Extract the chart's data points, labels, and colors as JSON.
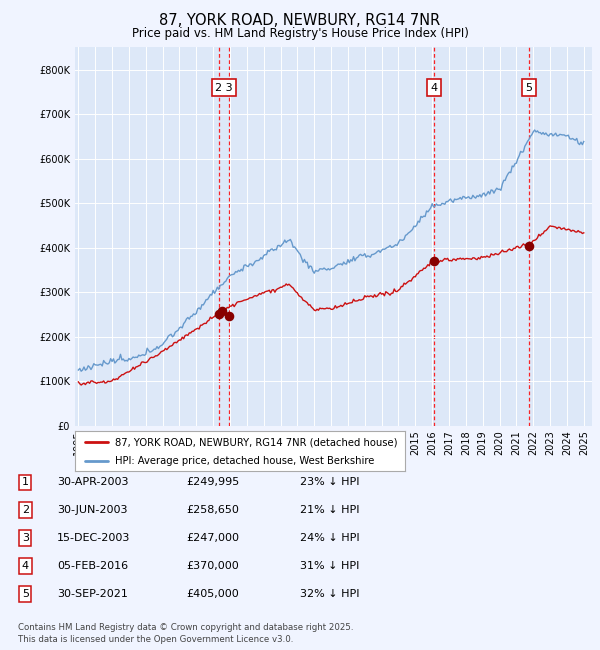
{
  "title": "87, YORK ROAD, NEWBURY, RG14 7NR",
  "subtitle": "Price paid vs. HM Land Registry's House Price Index (HPI)",
  "background_color": "#f0f4ff",
  "plot_bg_color": "#dde8f8",
  "legend_entries": [
    "87, YORK ROAD, NEWBURY, RG14 7NR (detached house)",
    "HPI: Average price, detached house, West Berkshire"
  ],
  "transactions": [
    {
      "num": 1,
      "date": "30-APR-2003",
      "price": 249995,
      "pct": "23%",
      "year": 2003.33
    },
    {
      "num": 2,
      "date": "30-JUN-2003",
      "price": 258650,
      "pct": "21%",
      "year": 2003.5
    },
    {
      "num": 3,
      "date": "15-DEC-2003",
      "price": 247000,
      "pct": "24%",
      "year": 2003.96
    },
    {
      "num": 4,
      "date": "05-FEB-2016",
      "price": 370000,
      "pct": "31%",
      "year": 2016.1
    },
    {
      "num": 5,
      "date": "30-SEP-2021",
      "price": 405000,
      "pct": "32%",
      "year": 2021.75
    }
  ],
  "label_boxes": [
    {
      "label": "2 3",
      "x": 2003.65,
      "vlines": [
        2003.33,
        2003.96
      ]
    },
    {
      "label": "4",
      "x": 2016.1,
      "vlines": [
        2016.1
      ]
    },
    {
      "label": "5",
      "x": 2021.75,
      "vlines": [
        2021.75
      ]
    }
  ],
  "hpi_color": "#6699cc",
  "price_color": "#cc1111",
  "marker_color": "#880000",
  "xmin": 1994.8,
  "xmax": 2025.5,
  "ymin": 0,
  "ymax": 850000,
  "table_rows": [
    [
      "1",
      "30-APR-2003",
      "£249,995",
      "23% ↓ HPI"
    ],
    [
      "2",
      "30-JUN-2003",
      "£258,650",
      "21% ↓ HPI"
    ],
    [
      "3",
      "15-DEC-2003",
      "£247,000",
      "24% ↓ HPI"
    ],
    [
      "4",
      "05-FEB-2016",
      "£370,000",
      "31% ↓ HPI"
    ],
    [
      "5",
      "30-SEP-2021",
      "£405,000",
      "32% ↓ HPI"
    ]
  ],
  "footer": "Contains HM Land Registry data © Crown copyright and database right 2025.\nThis data is licensed under the Open Government Licence v3.0."
}
